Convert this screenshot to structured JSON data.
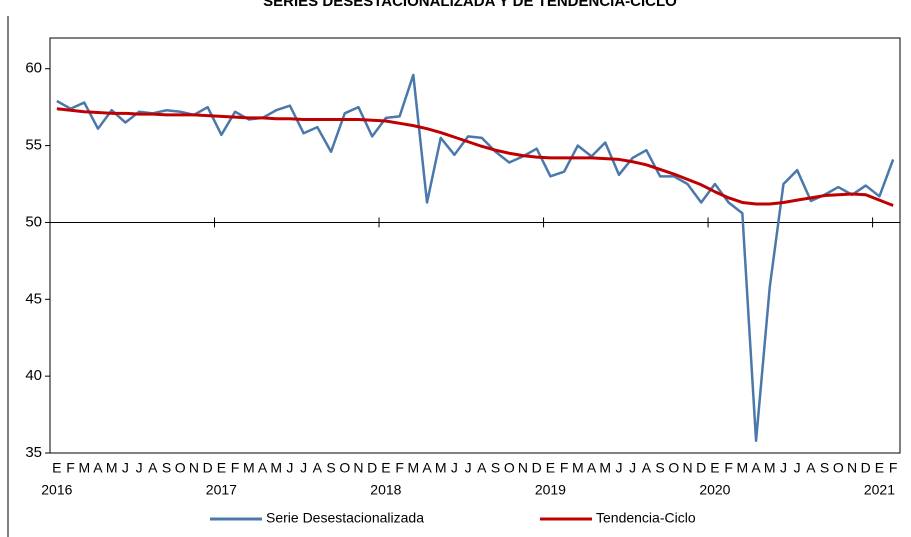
{
  "chart_data": {
    "type": "line",
    "title": "SERIES DESESTACIONALIZADA Y DE TENDENCIA-CICLO",
    "categories": [
      "E",
      "F",
      "M",
      "A",
      "M",
      "J",
      "J",
      "A",
      "S",
      "O",
      "N",
      "D",
      "E",
      "F",
      "M",
      "A",
      "M",
      "J",
      "J",
      "A",
      "S",
      "O",
      "N",
      "D",
      "E",
      "F",
      "M",
      "A",
      "M",
      "J",
      "J",
      "A",
      "S",
      "O",
      "N",
      "D",
      "E",
      "F",
      "M",
      "A",
      "M",
      "J",
      "J",
      "A",
      "S",
      "O",
      "N",
      "D",
      "E",
      "F",
      "M",
      "A",
      "M",
      "J",
      "J",
      "A",
      "S",
      "O",
      "N",
      "D",
      "E",
      "F"
    ],
    "x_group_labels": [
      "2016",
      "2017",
      "2018",
      "2019",
      "2020",
      "2021"
    ],
    "series": [
      {
        "name": "Serie Desestacionalizada",
        "color": "#4a78aa",
        "values": [
          57.9,
          57.4,
          57.8,
          56.1,
          57.3,
          56.5,
          57.2,
          57.1,
          57.3,
          57.2,
          57.0,
          57.5,
          55.7,
          57.2,
          56.7,
          56.8,
          57.3,
          57.6,
          55.8,
          56.2,
          54.6,
          57.1,
          57.5,
          55.6,
          56.8,
          56.9,
          59.6,
          51.3,
          55.5,
          54.4,
          55.6,
          55.5,
          54.6,
          53.9,
          54.3,
          54.8,
          53.0,
          53.3,
          55.0,
          54.3,
          55.2,
          53.1,
          54.2,
          54.7,
          53.0,
          53.0,
          52.5,
          51.3,
          52.5,
          51.3,
          50.6,
          35.8,
          45.8,
          52.5,
          53.4,
          51.4,
          51.8,
          52.3,
          51.8,
          52.4,
          51.7,
          54.1
        ]
      },
      {
        "name": "Tendencia-Ciclo",
        "color": "#c00000",
        "values": [
          57.4,
          57.3,
          57.2,
          57.15,
          57.1,
          57.1,
          57.05,
          57.05,
          57.0,
          57.0,
          57.0,
          56.95,
          56.9,
          56.85,
          56.8,
          56.8,
          56.75,
          56.75,
          56.7,
          56.7,
          56.7,
          56.7,
          56.7,
          56.65,
          56.6,
          56.45,
          56.3,
          56.1,
          55.85,
          55.55,
          55.25,
          54.95,
          54.7,
          54.5,
          54.35,
          54.25,
          54.2,
          54.2,
          54.2,
          54.2,
          54.15,
          54.1,
          53.95,
          53.75,
          53.45,
          53.15,
          52.8,
          52.45,
          52.0,
          51.6,
          51.3,
          51.2,
          51.2,
          51.3,
          51.45,
          51.6,
          51.75,
          51.8,
          51.85,
          51.8,
          51.45,
          51.1
        ]
      }
    ],
    "ylim": [
      35,
      62
    ],
    "yticks": [
      35,
      40,
      45,
      50,
      55,
      60
    ],
    "x_axis_at": 50,
    "legend": "bottom"
  }
}
